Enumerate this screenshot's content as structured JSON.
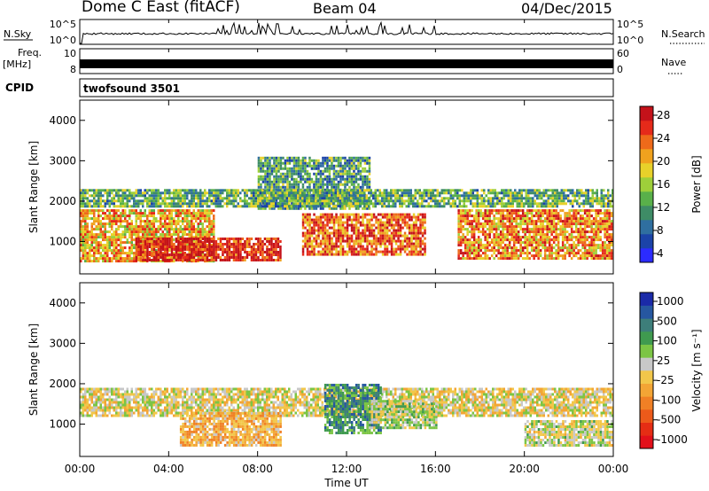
{
  "header": {
    "station": "Dome C East (fitACF)",
    "beam": "Beam 04",
    "date": "04/Dec/2015"
  },
  "strips": {
    "nsky_label": "N.Sky",
    "nsky_ticks": [
      "10^5",
      "10^0"
    ],
    "nsearch_label": "N.Search",
    "nsearch_ticks": [
      "10^5",
      "10^0"
    ],
    "freq_label_line1": "Freq.",
    "freq_label_line2": "[MHz]",
    "freq_ticks": [
      "10",
      "8"
    ],
    "nave_label": "Nave",
    "nave_ticks": [
      "60",
      "0"
    ],
    "cpid_label": "CPID",
    "cpid_value": "twofsound 3501"
  },
  "colorbars": {
    "power": {
      "title": "Power [dB]",
      "tick_labels": [
        "28",
        "24",
        "20",
        "16",
        "12",
        "8",
        "4"
      ],
      "colors": [
        "#2b2bff",
        "#1b43a8",
        "#2f6fa0",
        "#3e8c66",
        "#59b04a",
        "#9ecf3a",
        "#e8d12a",
        "#f0a21e",
        "#ee6a1a",
        "#e52a1a",
        "#c4121a"
      ]
    },
    "velocity": {
      "title": "Velocity [m s⁻¹]",
      "tick_labels": [
        "1000",
        "500",
        "100",
        "25",
        "-25",
        "-100",
        "-500",
        "-1000"
      ],
      "colors": [
        "#1a2aa8",
        "#2657a0",
        "#3d7e7a",
        "#3f9a4f",
        "#7cc545",
        "#c8c8c8",
        "#f2c74a",
        "#f3a535",
        "#f08025",
        "#ec5a1a",
        "#e52d14",
        "#e2101a"
      ]
    }
  },
  "x_axis": {
    "label": "Time UT",
    "tick_labels": [
      "00:00",
      "04:00",
      "08:00",
      "12:00",
      "16:00",
      "20:00",
      "00:00"
    ]
  },
  "chart_data": [
    {
      "type": "heatmap",
      "title": "",
      "xlabel": "",
      "ylabel": "Slant Range [km]",
      "x_range_hours": [
        0,
        24
      ],
      "ylim": [
        200,
        4500
      ],
      "y_ticks": [
        "1000",
        "2000",
        "3000",
        "4000"
      ],
      "value_label": "Power [dB]",
      "zlim": [
        0,
        30
      ],
      "echo_bands": [
        {
          "t0": 0.0,
          "t1": 6.0,
          "r0": 500,
          "r1": 1800,
          "value": 20
        },
        {
          "t0": 2.5,
          "t1": 9.0,
          "r0": 550,
          "r1": 1100,
          "value": 28
        },
        {
          "t0": 10.0,
          "t1": 15.5,
          "r0": 700,
          "r1": 1700,
          "value": 24
        },
        {
          "t0": 17.0,
          "t1": 24.0,
          "r0": 600,
          "r1": 1800,
          "value": 22
        },
        {
          "t0": 8.0,
          "t1": 13.0,
          "r0": 1800,
          "r1": 3100,
          "value": 10
        },
        {
          "t0": 0.0,
          "t1": 24.0,
          "r0": 1850,
          "r1": 2300,
          "value": 12
        }
      ]
    },
    {
      "type": "heatmap",
      "title": "",
      "xlabel": "Time UT",
      "ylabel": "Slant Range [km]",
      "x_range_hours": [
        0,
        24
      ],
      "ylim": [
        200,
        4500
      ],
      "y_ticks": [
        "1000",
        "2000",
        "3000",
        "4000"
      ],
      "value_label": "Velocity [m s-1]",
      "zlim": [
        -1000,
        1000
      ],
      "echo_bands": [
        {
          "t0": 0.0,
          "t1": 24.0,
          "r0": 1200,
          "r1": 1900,
          "value": 0
        },
        {
          "t0": 4.5,
          "t1": 9.0,
          "r0": 500,
          "r1": 1300,
          "value": -200
        },
        {
          "t0": 11.0,
          "t1": 13.5,
          "r0": 800,
          "r1": 2000,
          "value": 500
        },
        {
          "t0": 13.0,
          "t1": 16.0,
          "r0": 900,
          "r1": 1600,
          "value": 150
        },
        {
          "t0": 20.0,
          "t1": 24.0,
          "r0": 500,
          "r1": 1100,
          "value": 80
        }
      ]
    }
  ]
}
